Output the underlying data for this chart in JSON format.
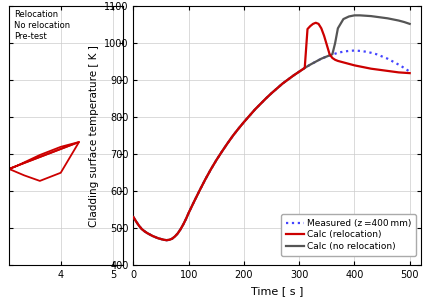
{
  "fig_width": 4.25,
  "fig_height": 3.05,
  "dpi": 100,
  "left_panel": {
    "xlim": [
      3.0,
      5.2
    ],
    "ylim": [
      400,
      1100
    ],
    "yticks": [
      400,
      500,
      600,
      700,
      800,
      900,
      1000,
      1100
    ],
    "xticks": [
      4,
      5
    ],
    "reloc_upper_x": [
      3.0,
      3.05,
      3.15,
      3.3,
      3.6,
      4.0,
      4.35,
      3.0
    ],
    "reloc_upper_y": [
      660,
      662,
      668,
      678,
      698,
      720,
      733,
      660
    ],
    "reloc_lower_x": [
      3.0,
      3.05,
      3.15,
      3.3,
      3.6,
      4.0,
      4.35,
      3.0
    ],
    "reloc_lower_y": [
      660,
      658,
      652,
      643,
      628,
      650,
      733,
      660
    ],
    "color_relocation": "#cc0000",
    "color_no_relocation": "#555555",
    "color_pretest": "#333333"
  },
  "right_panel": {
    "ylabel": "Cladding surface temperature [ K ]",
    "xlabel": "Time [ s ]",
    "xlim": [
      0,
      520
    ],
    "ylim": [
      400,
      1100
    ],
    "yticks": [
      400,
      500,
      600,
      700,
      800,
      900,
      1000,
      1100
    ],
    "xticks": [
      0,
      100,
      200,
      300,
      400,
      500
    ],
    "measured_x": [
      0,
      5,
      10,
      15,
      20,
      25,
      30,
      35,
      40,
      45,
      50,
      55,
      60,
      65,
      70,
      75,
      80,
      85,
      90,
      95,
      100,
      110,
      120,
      130,
      140,
      150,
      160,
      170,
      180,
      190,
      200,
      210,
      220,
      230,
      240,
      250,
      260,
      270,
      280,
      290,
      300,
      310,
      320,
      330,
      340,
      350,
      360,
      370,
      380,
      390,
      400,
      410,
      420,
      430,
      440,
      450,
      460,
      470,
      480,
      490,
      500
    ],
    "measured_y": [
      530,
      518,
      507,
      498,
      492,
      487,
      483,
      479,
      476,
      473,
      471,
      469,
      468,
      469,
      472,
      478,
      486,
      497,
      510,
      525,
      542,
      573,
      603,
      632,
      659,
      684,
      707,
      729,
      750,
      769,
      787,
      804,
      821,
      836,
      851,
      865,
      878,
      891,
      902,
      913,
      923,
      933,
      942,
      950,
      958,
      964,
      969,
      974,
      977,
      979,
      980,
      979,
      977,
      974,
      970,
      964,
      958,
      950,
      942,
      933,
      923
    ],
    "measured_color": "#4444ff",
    "measured_style": "dotted",
    "measured_lw": 1.6,
    "reloc_x": [
      0,
      5,
      10,
      15,
      20,
      25,
      30,
      35,
      40,
      45,
      50,
      55,
      60,
      65,
      70,
      75,
      80,
      85,
      90,
      95,
      100,
      110,
      120,
      130,
      140,
      150,
      160,
      170,
      180,
      190,
      200,
      210,
      220,
      230,
      240,
      250,
      260,
      270,
      280,
      290,
      300,
      310,
      315,
      320,
      325,
      330,
      335,
      340,
      345,
      350,
      355,
      360,
      365,
      370,
      380,
      390,
      400,
      410,
      420,
      430,
      440,
      450,
      460,
      470,
      480,
      490,
      500
    ],
    "reloc_y": [
      530,
      518,
      507,
      498,
      492,
      487,
      483,
      479,
      476,
      473,
      471,
      469,
      468,
      469,
      472,
      478,
      486,
      497,
      510,
      525,
      542,
      573,
      603,
      632,
      659,
      684,
      707,
      729,
      750,
      769,
      787,
      804,
      821,
      836,
      851,
      865,
      878,
      891,
      902,
      913,
      923,
      933,
      1038,
      1046,
      1052,
      1055,
      1052,
      1040,
      1020,
      995,
      970,
      960,
      955,
      952,
      948,
      944,
      940,
      937,
      934,
      931,
      929,
      927,
      925,
      923,
      921,
      920,
      919
    ],
    "reloc_color": "#cc0000",
    "reloc_style": "solid",
    "reloc_lw": 1.6,
    "noreloc_x": [
      0,
      5,
      10,
      15,
      20,
      25,
      30,
      35,
      40,
      45,
      50,
      55,
      60,
      65,
      70,
      75,
      80,
      85,
      90,
      95,
      100,
      110,
      120,
      130,
      140,
      150,
      160,
      170,
      180,
      190,
      200,
      210,
      220,
      230,
      240,
      250,
      260,
      270,
      280,
      290,
      300,
      310,
      320,
      330,
      340,
      350,
      355,
      360,
      365,
      370,
      380,
      390,
      400,
      410,
      420,
      430,
      440,
      450,
      460,
      470,
      480,
      490,
      500
    ],
    "noreloc_y": [
      530,
      518,
      507,
      498,
      492,
      487,
      483,
      479,
      476,
      473,
      471,
      469,
      468,
      469,
      472,
      478,
      486,
      497,
      510,
      525,
      542,
      573,
      603,
      632,
      659,
      684,
      707,
      729,
      750,
      769,
      787,
      804,
      821,
      836,
      851,
      865,
      878,
      891,
      902,
      913,
      923,
      933,
      942,
      950,
      958,
      964,
      967,
      970,
      1000,
      1040,
      1065,
      1072,
      1075,
      1075,
      1074,
      1073,
      1071,
      1069,
      1067,
      1064,
      1061,
      1057,
      1052
    ],
    "noreloc_color": "#555555",
    "noreloc_style": "solid",
    "noreloc_lw": 1.6
  }
}
